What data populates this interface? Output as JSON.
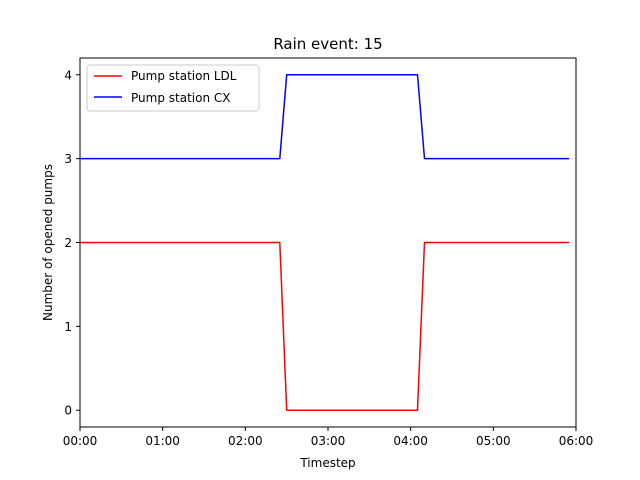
{
  "chart_data": {
    "type": "line",
    "title": "Rain event: 15",
    "xlabel": "Timestep",
    "ylabel": "Number of opened pumps",
    "x_unit": "hours",
    "xlim": [
      0,
      6
    ],
    "ylim": [
      -0.2,
      4.2
    ],
    "x_ticks": [
      0,
      1,
      2,
      3,
      4,
      5,
      6
    ],
    "x_tick_labels": [
      "00:00",
      "01:00",
      "02:00",
      "03:00",
      "04:00",
      "05:00",
      "06:00"
    ],
    "y_ticks": [
      0,
      1,
      2,
      3,
      4
    ],
    "y_tick_labels": [
      "0",
      "1",
      "2",
      "3",
      "4"
    ],
    "grid": false,
    "legend_position": "upper-left",
    "series": [
      {
        "name": "Pump station LDL",
        "color": "#ff0000",
        "x": [
          0,
          2.417,
          2.5,
          4.083,
          4.167,
          5.917
        ],
        "y": [
          2,
          2,
          0,
          0,
          2,
          2
        ]
      },
      {
        "name": "Pump station CX",
        "color": "#0000ff",
        "x": [
          0,
          2.417,
          2.5,
          4.083,
          4.167,
          5.917
        ],
        "y": [
          3,
          3,
          4,
          4,
          3,
          3
        ]
      }
    ]
  }
}
